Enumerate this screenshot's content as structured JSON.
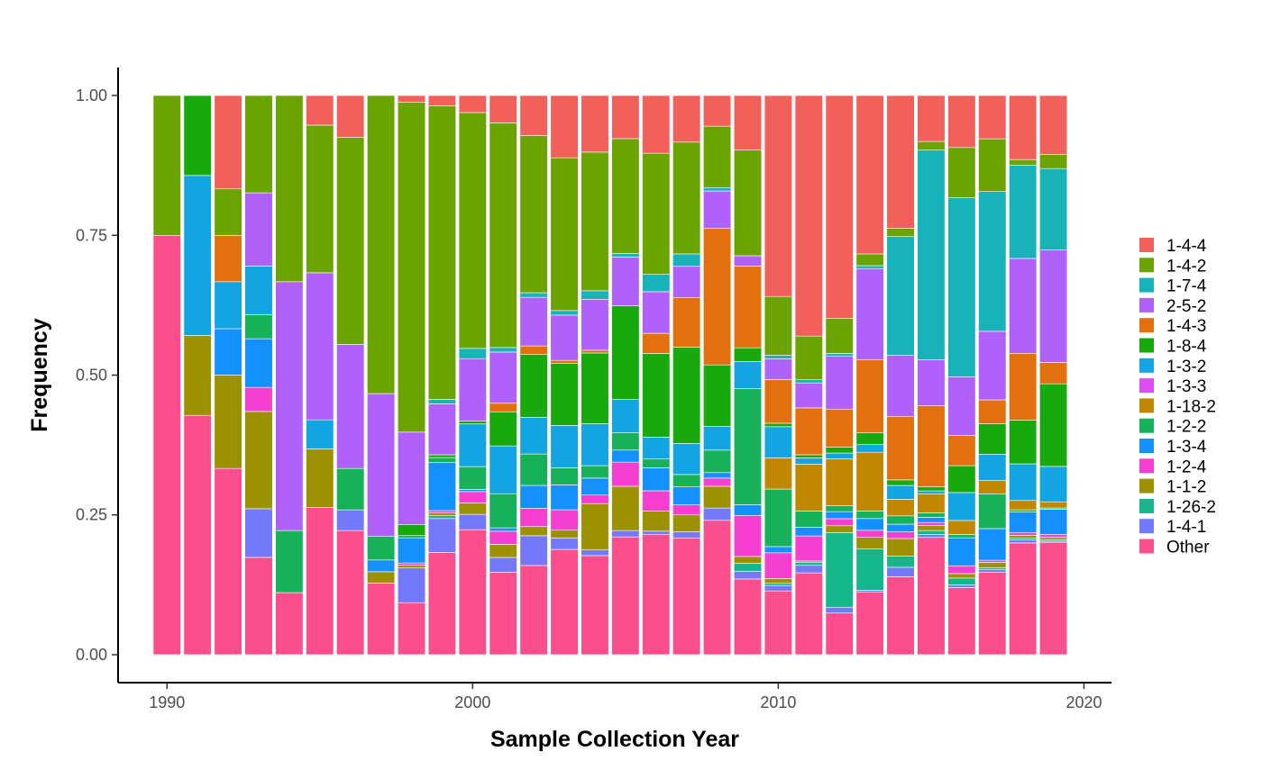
{
  "chart_data": {
    "type": "bar",
    "stacked": true,
    "title": "",
    "xlabel": "Sample Collection Year",
    "ylabel": "Frequency",
    "xlim": [
      1988.4,
      2020.9
    ],
    "ylim": [
      -0.05,
      1.05
    ],
    "xticks": [
      1990,
      2000,
      2010,
      2020
    ],
    "yticks": [
      "0.00",
      "0.25",
      "0.50",
      "0.75",
      "1.00"
    ],
    "ytick_values": [
      0,
      0.25,
      0.5,
      0.75,
      1.0
    ],
    "grid": false,
    "legend_position": "right",
    "legend_order": [
      "1-4-4",
      "1-4-2",
      "1-7-4",
      "2-5-2",
      "1-4-3",
      "1-8-4",
      "1-3-2",
      "1-3-3",
      "1-18-2",
      "1-2-2",
      "1-3-4",
      "1-2-4",
      "1-1-2",
      "1-26-2",
      "1-4-1",
      "Other"
    ],
    "stack_order_bottom_to_top": [
      "Other",
      "1-4-1",
      "1-26-2",
      "1-1-2",
      "1-2-4",
      "1-3-4",
      "1-2-2",
      "1-18-2",
      "1-3-3",
      "1-3-2",
      "1-8-4",
      "1-4-3",
      "2-5-2",
      "1-7-4",
      "1-4-2",
      "1-4-4"
    ],
    "colors": {
      "1-4-4": "#F8766D",
      "1-4-2": "#7CAE00",
      "1-7-4": "#00BFC4",
      "2-5-2": "#C77CFF",
      "1-4-3": "#E76BF3",
      "1-8-4": "#00BA38",
      "1-3-2": "#00A9FF",
      "1-3-3": "#E76BF3",
      "1-18-2": "#B79F00",
      "1-2-2": "#00C08B",
      "1-3-4": "#00B0F6",
      "1-2-4": "#FF62BC",
      "1-1-2": "#A3A500",
      "1-26-2": "#00BFA0",
      "1-4-1": "#8494FF",
      "Other": "#FF6C91"
    },
    "series_colors": {
      "1-4-4": "#F2605C",
      "1-4-2": "#6BA300",
      "1-7-4": "#17B3B8",
      "2-5-2": "#B061FA",
      "1-4-3": "#E2700F",
      "1-8-4": "#18AA0C",
      "1-3-2": "#13A5E2",
      "1-3-3": "#DB4FF0",
      "1-18-2": "#C28700",
      "1-2-2": "#17B15A",
      "1-3-4": "#1491FF",
      "1-2-4": "#F43FD0",
      "1-1-2": "#9C9100",
      "1-26-2": "#14B68A",
      "1-4-1": "#7379FA",
      "Other": "#FB4E8C"
    },
    "x": [
      1990,
      1991,
      1992,
      1993,
      1994,
      1995,
      1996,
      1997,
      1998,
      1999,
      2000,
      2001,
      2002,
      2003,
      2004,
      2005,
      2006,
      2007,
      2008,
      2009,
      2010,
      2011,
      2012,
      2013,
      2014,
      2015,
      2016,
      2017,
      2018,
      2019
    ],
    "series": [
      {
        "name": "Other",
        "values": [
          0.75,
          0.428,
          0.333,
          0.174,
          0.111,
          0.263,
          0.222,
          0.128,
          0.093,
          0.181,
          0.22,
          0.145,
          0.156,
          0.186,
          0.175,
          0.205,
          0.208,
          0.188,
          0.197,
          0.111,
          0.092,
          0.131,
          0.071,
          0.107,
          0.141,
          0.204,
          0.12,
          0.156,
          0.192,
          0.2
        ]
      },
      {
        "name": "1-4-1",
        "values": [
          0,
          0,
          0,
          0.087,
          0,
          0,
          0.037,
          0,
          0.062,
          0.06,
          0.027,
          0.026,
          0.052,
          0.02,
          0.01,
          0.011,
          0.006,
          0.01,
          0.018,
          0.011,
          0.008,
          0.012,
          0.01,
          0.003,
          0.017,
          0.005,
          0.005,
          0.005,
          0.005,
          0.002
        ]
      },
      {
        "name": "1-26-2",
        "values": [
          0,
          0,
          0,
          0,
          0,
          0,
          0,
          0,
          0,
          0.005,
          0,
          0,
          0,
          0,
          0,
          0,
          0,
          0,
          0,
          0.012,
          0.003,
          0.005,
          0.127,
          0.07,
          0.02,
          0.007,
          0.012,
          0.004,
          0.003,
          0.003
        ]
      },
      {
        "name": "1-1-2",
        "values": [
          0,
          0.143,
          0.167,
          0.174,
          0,
          0.105,
          0,
          0.02,
          0.005,
          0.005,
          0.02,
          0.023,
          0.016,
          0.014,
          0.082,
          0.077,
          0.035,
          0.027,
          0.032,
          0.01,
          0.007,
          0.002,
          0.012,
          0.02,
          0.032,
          0.009,
          0.008,
          0.01,
          0.005,
          0.004
        ]
      },
      {
        "name": "1-2-4",
        "values": [
          0,
          0,
          0,
          0.043,
          0,
          0,
          0,
          0,
          0.004,
          0.004,
          0.02,
          0.023,
          0.032,
          0.036,
          0.015,
          0.042,
          0.035,
          0.016,
          0.012,
          0.06,
          0.037,
          0.04,
          0.012,
          0.012,
          0.012,
          0.005,
          0.014,
          0.004,
          0.005,
          0.005
        ]
      },
      {
        "name": "1-3-4",
        "values": [
          0,
          0,
          0.083,
          0.087,
          0,
          0,
          0,
          0.021,
          0.045,
          0.085,
          0.004,
          0.006,
          0.04,
          0.044,
          0.03,
          0.021,
          0.04,
          0.029,
          0.008,
          0.016,
          0.009,
          0.014,
          0.012,
          0.02,
          0.014,
          0.009,
          0.05,
          0.06,
          0.035,
          0.045
        ]
      },
      {
        "name": "1-2-2",
        "values": [
          0,
          0,
          0,
          0.043,
          0.111,
          0,
          0.074,
          0.042,
          0.004,
          0.009,
          0.04,
          0.06,
          0.055,
          0.03,
          0.022,
          0.03,
          0.015,
          0.02,
          0.033,
          0.17,
          0.083,
          0.026,
          0.01,
          0.013,
          0.015,
          0.008,
          0.006,
          0.066,
          0.004,
          0.002
        ]
      },
      {
        "name": "1-18-2",
        "values": [
          0,
          0,
          0,
          0,
          0,
          0,
          0,
          0,
          0,
          0,
          0,
          0,
          0,
          0,
          0,
          0,
          0,
          0,
          0,
          0,
          0.045,
          0.075,
          0.08,
          0.1,
          0.03,
          0.033,
          0.025,
          0.025,
          0.016,
          0.011
        ]
      },
      {
        "name": "1-3-3",
        "values": [
          0,
          0,
          0,
          0,
          0,
          0,
          0,
          0,
          0,
          0,
          0,
          0,
          0,
          0,
          0,
          0,
          0,
          0,
          0,
          0,
          0,
          0,
          0,
          0,
          0,
          0,
          0,
          0,
          0,
          0
        ]
      },
      {
        "name": "1-3-2",
        "values": [
          0,
          0.286,
          0.084,
          0.087,
          0,
          0.052,
          0,
          0,
          0,
          0,
          0.075,
          0.084,
          0.064,
          0.075,
          0.074,
          0.058,
          0.038,
          0.05,
          0.035,
          0.04,
          0.045,
          0.01,
          0.01,
          0.013,
          0.025,
          0.005,
          0.05,
          0.05,
          0.063,
          0.063
        ]
      },
      {
        "name": "1-8-4",
        "values": [
          0,
          0.143,
          0,
          0,
          0,
          0,
          0,
          0,
          0.02,
          0.005,
          0.005,
          0.06,
          0.11,
          0.11,
          0.125,
          0.163,
          0.145,
          0.155,
          0.09,
          0.02,
          0.005,
          0.005,
          0.01,
          0.02,
          0.01,
          0.007,
          0.048,
          0.058,
          0.075,
          0.147
        ]
      },
      {
        "name": "1-4-3",
        "values": [
          0,
          0,
          0.083,
          0,
          0,
          0,
          0,
          0,
          0,
          0,
          0,
          0.015,
          0.015,
          0.005,
          0.005,
          0,
          0.035,
          0.08,
          0.2,
          0.12,
          0.063,
          0.075,
          0.065,
          0.125,
          0.115,
          0.141,
          0.054,
          0.045,
          0.115,
          0.038
        ]
      },
      {
        "name": "2-5-2",
        "values": [
          0,
          0,
          0,
          0.131,
          0.445,
          0.263,
          0.222,
          0.255,
          0.165,
          0.09,
          0.11,
          0.09,
          0.085,
          0.08,
          0.09,
          0.085,
          0.072,
          0.05,
          0.055,
          0.015,
          0.03,
          0.04,
          0.09,
          0.155,
          0.11,
          0.08,
          0.105,
          0.13,
          0.163,
          0.2
        ]
      },
      {
        "name": "1-7-4",
        "values": [
          0,
          0,
          0,
          0,
          0,
          0,
          0,
          0,
          0,
          0.008,
          0.018,
          0.008,
          0.008,
          0.008,
          0.015,
          0.006,
          0.03,
          0.02,
          0.005,
          0,
          0.005,
          0.005,
          0.005,
          0.005,
          0.215,
          0.365,
          0.32,
          0.265,
          0.16,
          0.145
        ]
      },
      {
        "name": "1-4-2",
        "values": [
          0.25,
          0,
          0.083,
          0.174,
          0.333,
          0.264,
          0.37,
          0.532,
          0.59,
          0.52,
          0.415,
          0.395,
          0.275,
          0.27,
          0.245,
          0.2,
          0.21,
          0.18,
          0.09,
          0.155,
          0.085,
          0.07,
          0.06,
          0.02,
          0.015,
          0.015,
          0.09,
          0.1,
          0.01,
          0.025
        ]
      },
      {
        "name": "1-4-4",
        "values": [
          0,
          0,
          0.167,
          0,
          0,
          0.053,
          0.075,
          0,
          0.012,
          0.018,
          0.03,
          0.048,
          0.07,
          0.11,
          0.1,
          0.075,
          0.1,
          0.075,
          0.045,
          0.08,
          0.29,
          0.385,
          0.38,
          0.27,
          0.24,
          0.08,
          0.093,
          0.082,
          0.11,
          0.105
        ]
      }
    ]
  }
}
